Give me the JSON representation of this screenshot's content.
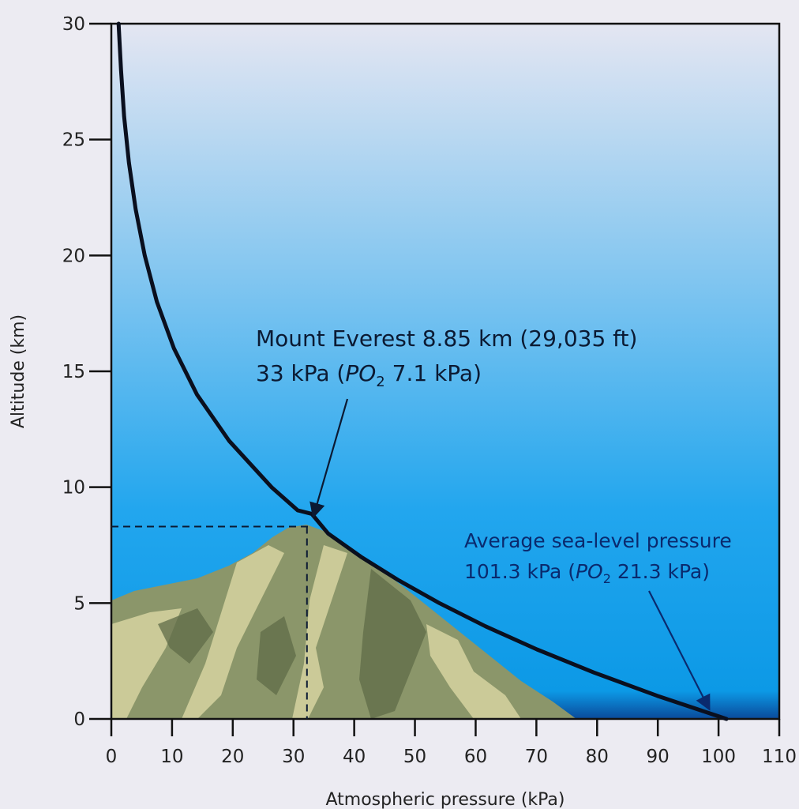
{
  "chart_data": {
    "type": "line",
    "title": "",
    "xlabel": "Atmospheric pressure (kPa)",
    "ylabel": "Altitude (km)",
    "xlim": [
      0,
      110
    ],
    "ylim": [
      0,
      30
    ],
    "x_ticks": [
      0,
      10,
      20,
      30,
      40,
      50,
      60,
      70,
      80,
      90,
      100,
      110
    ],
    "y_ticks": [
      0,
      5,
      10,
      15,
      20,
      25,
      30
    ],
    "series": [
      {
        "name": "",
        "points": [
          [
            101.3,
            0
          ],
          [
            89.9,
            1
          ],
          [
            79.5,
            2
          ],
          [
            70.1,
            3
          ],
          [
            61.6,
            4
          ],
          [
            54.0,
            5
          ],
          [
            47.2,
            6
          ],
          [
            41.1,
            7
          ],
          [
            35.7,
            8
          ],
          [
            33.0,
            8.85
          ],
          [
            30.7,
            9
          ],
          [
            26.4,
            10
          ],
          [
            19.4,
            12
          ],
          [
            14.1,
            14
          ],
          [
            10.3,
            16
          ],
          [
            7.5,
            18
          ],
          [
            5.5,
            20
          ],
          [
            4.0,
            22
          ],
          [
            2.9,
            24
          ],
          [
            2.1,
            26
          ],
          [
            1.6,
            28
          ],
          [
            1.2,
            30
          ]
        ]
      }
    ],
    "annotations": [
      {
        "id": "everest",
        "line1": "Mount Everest 8.85 km (29,035 ft)",
        "line2_prefix": "33 kPa (",
        "line2_po": "PO",
        "line2_sub": "2",
        "line2_suffix": " 7.1 kPa)",
        "point": [
          33,
          8.85
        ]
      },
      {
        "id": "sea-level",
        "line1": "Average sea-level pressure",
        "line2_prefix": "101.3 kPa (",
        "line2_po": "PO",
        "line2_sub": "2",
        "line2_suffix": " 21.3 kPa)",
        "point": [
          101.3,
          0
        ]
      }
    ],
    "grid": false,
    "colors": {
      "sky_top": "#e4e6f2",
      "sky_bottom": "#0c99e6",
      "curve": "#0a0f1e",
      "annotation_everest": "#0b1a33",
      "annotation_sealevel": "#0a2a6e",
      "mountain_base": "#8b966a",
      "mountain_light": "#d6d3a0",
      "mountain_dark": "#5f6b48"
    }
  }
}
